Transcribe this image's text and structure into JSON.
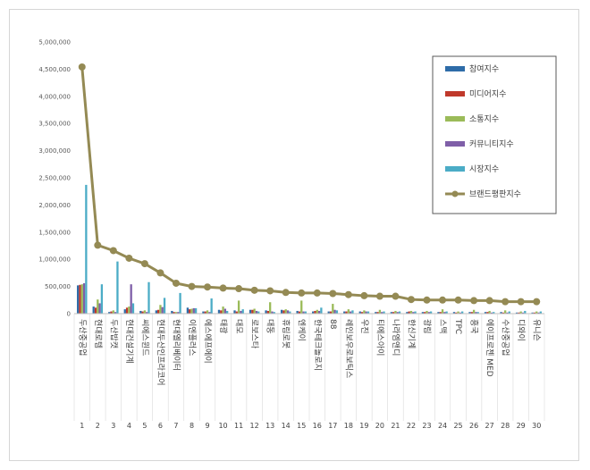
{
  "chart_data": {
    "type": "bar",
    "title": "",
    "xlabel": "",
    "ylabel": "",
    "ylim": [
      0,
      5000000
    ],
    "yticks": [
      "0",
      "500,000",
      "1,000,000",
      "1,500,000",
      "2,000,000",
      "2,500,000",
      "3,000,000",
      "3,500,000",
      "4,000,000",
      "4,500,000",
      "5,000,000"
    ],
    "grid": false,
    "legend_position": "top-right",
    "categories": [
      "두산중공업",
      "현대로템",
      "두산밥캣",
      "현대건설기계",
      "씨에스윈드",
      "현대두산인프라코어",
      "현대엘리베이터",
      "이엔플러스",
      "에스에프에이",
      "태광",
      "대모",
      "로보스타",
      "대동",
      "휴림로봇",
      "엔케이",
      "한국테크놀로지",
      "88",
      "레인보우로보틱스",
      "우진",
      "티에스아이",
      "나라엠앤디",
      "한신기계",
      "광림",
      "스맥",
      "TPC",
      "흥국",
      "에이프로젠 MED",
      "수산중공업",
      "디와이",
      "유니슨"
    ],
    "ranks": [
      "1",
      "2",
      "3",
      "4",
      "5",
      "6",
      "7",
      "8",
      "9",
      "10",
      "11",
      "12",
      "13",
      "14",
      "15",
      "16",
      "17",
      "18",
      "19",
      "20",
      "21",
      "22",
      "23",
      "24",
      "25",
      "26",
      "27",
      "28",
      "29",
      "30"
    ],
    "series": [
      {
        "name": "참여지수",
        "color": "#2e6ca8",
        "values": [
          520000,
          130000,
          30000,
          80000,
          50000,
          60000,
          50000,
          110000,
          40000,
          70000,
          60000,
          70000,
          60000,
          70000,
          50000,
          40000,
          40000,
          40000,
          40000,
          30000,
          30000,
          30000,
          30000,
          30000,
          30000,
          30000,
          30000,
          30000,
          20000,
          20000
        ]
      },
      {
        "name": "미디어지수",
        "color": "#c0392b",
        "values": [
          530000,
          110000,
          40000,
          110000,
          40000,
          70000,
          30000,
          80000,
          40000,
          60000,
          40000,
          70000,
          50000,
          60000,
          40000,
          50000,
          40000,
          40000,
          30000,
          30000,
          30000,
          40000,
          30000,
          30000,
          20000,
          30000,
          30000,
          20000,
          20000,
          20000
        ]
      },
      {
        "name": "소통지수",
        "color": "#9bbb59",
        "values": [
          540000,
          260000,
          60000,
          130000,
          60000,
          160000,
          30000,
          90000,
          60000,
          130000,
          240000,
          90000,
          210000,
          80000,
          240000,
          70000,
          180000,
          80000,
          60000,
          70000,
          50000,
          50000,
          50000,
          80000,
          40000,
          70000,
          50000,
          60000,
          40000,
          40000
        ]
      },
      {
        "name": "커뮤니티지수",
        "color": "#7f5fa8",
        "values": [
          560000,
          190000,
          30000,
          540000,
          30000,
          120000,
          30000,
          100000,
          30000,
          90000,
          50000,
          50000,
          40000,
          60000,
          40000,
          50000,
          70000,
          40000,
          40000,
          30000,
          30000,
          30000,
          30000,
          30000,
          20000,
          30000,
          20000,
          20000,
          20000,
          20000
        ]
      },
      {
        "name": "시장지수",
        "color": "#4bacc6",
        "values": [
          2370000,
          540000,
          960000,
          190000,
          580000,
          290000,
          380000,
          100000,
          280000,
          50000,
          80000,
          40000,
          30000,
          40000,
          40000,
          110000,
          60000,
          60000,
          40000,
          40000,
          40000,
          40000,
          40000,
          40000,
          40000,
          30000,
          30000,
          40000,
          50000,
          40000
        ]
      },
      {
        "name": "브랜드평판지수",
        "color": "#948a54",
        "type": "line",
        "values": [
          4540000,
          1260000,
          1160000,
          1020000,
          920000,
          750000,
          560000,
          500000,
          490000,
          470000,
          460000,
          430000,
          420000,
          390000,
          380000,
          380000,
          370000,
          350000,
          330000,
          320000,
          320000,
          260000,
          250000,
          250000,
          250000,
          240000,
          240000,
          220000,
          220000,
          220000
        ]
      }
    ]
  }
}
